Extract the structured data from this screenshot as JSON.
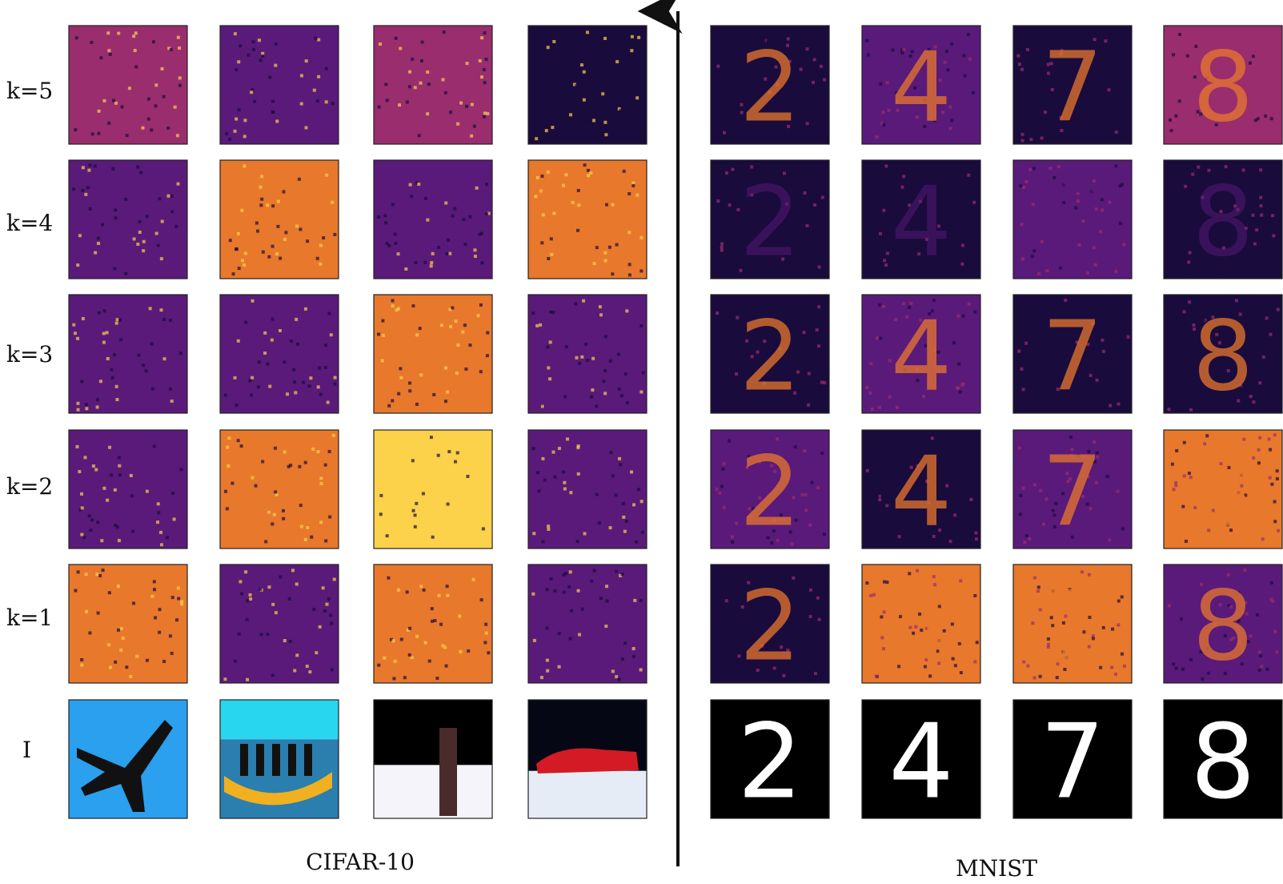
{
  "row_labels": [
    "k=5",
    "k=4",
    "k=3",
    "k=2",
    "k=1",
    "I"
  ],
  "left_panel": {
    "dataset_label": "CIFAR-10",
    "images": [
      "airplane",
      "boat",
      "person",
      "car"
    ]
  },
  "right_panel": {
    "dataset_label": "MNIST",
    "images": [
      "2",
      "4",
      "7",
      "8"
    ]
  },
  "colormap": "inferno",
  "colors": {
    "dark": "#1a0b3d",
    "purple": "#5a1a7a",
    "magenta": "#9a2d6e",
    "orange": "#e8782c",
    "yellow": "#fbd24a"
  },
  "arrow": "up-arrow-divider"
}
